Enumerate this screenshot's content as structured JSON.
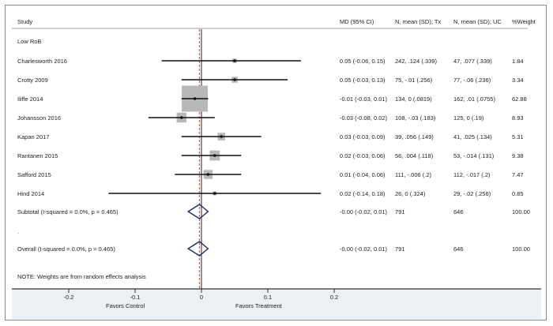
{
  "chart_data": {
    "type": "forest",
    "xlabel_left": "Favors Control",
    "xlabel_right": "Favors Treatment",
    "xlim": [
      -0.3,
      0.2
    ],
    "xticks": [
      -0.2,
      -0.1,
      0,
      0.1,
      0.2
    ],
    "xtick_labels": [
      "-0.2",
      "-0.1",
      "0",
      "0.1",
      "0.2"
    ],
    "null_line": 0,
    "overall_line": -0.003,
    "columns": [
      "Study",
      "MD (95% CI)",
      "N, mean (SD); Tx",
      "N, mean (SD); UC",
      "%Weight"
    ],
    "group_label": "Low RoB",
    "studies": [
      {
        "name": "Charlesworth 2016",
        "md": 0.05,
        "lo": -0.06,
        "hi": 0.15,
        "md_text": "0.05 (-0.06, 0.15)",
        "tx": "242, .124 (.339)",
        "uc": "47, .077 (.339)",
        "weight": 1.84,
        "weight_text": "1.84"
      },
      {
        "name": "Crotty 2009",
        "md": 0.05,
        "lo": -0.03,
        "hi": 0.13,
        "md_text": "0.05 (-0.03, 0.13)",
        "tx": "75, -.01 (.256)",
        "uc": "77, -.06 (.236)",
        "weight": 3.34,
        "weight_text": "3.34"
      },
      {
        "name": "Iliffe 2014",
        "md": -0.01,
        "lo": -0.03,
        "hi": 0.01,
        "md_text": "-0.01 (-0.03, 0.01)",
        "tx": "134, 0 (.0819)",
        "uc": "162, .01 (.0755)",
        "weight": 62.88,
        "weight_text": "62.88"
      },
      {
        "name": "Johansson 2016",
        "md": -0.03,
        "lo": -0.08,
        "hi": 0.02,
        "md_text": "-0.03 (-0.08, 0.02)",
        "tx": "108, -.03 (.183)",
        "uc": "125, 0 (.19)",
        "weight": 8.93,
        "weight_text": "8.93"
      },
      {
        "name": "Kapan 2017",
        "md": 0.03,
        "lo": -0.03,
        "hi": 0.09,
        "md_text": "0.03 (-0.03, 0.09)",
        "tx": "39, .056 (.149)",
        "uc": "41, .025 (.134)",
        "weight": 5.31,
        "weight_text": "5.31"
      },
      {
        "name": "Rantanen 2015",
        "md": 0.02,
        "lo": -0.03,
        "hi": 0.06,
        "md_text": "0.02 (-0.03, 0.06)",
        "tx": "56, .004 (.118)",
        "uc": "53, -.014 (.131)",
        "weight": 9.38,
        "weight_text": "9.38"
      },
      {
        "name": "Safford 2015",
        "md": 0.01,
        "lo": -0.04,
        "hi": 0.06,
        "md_text": "0.01 (-0.04, 0.06)",
        "tx": "111, -.006 (.2)",
        "uc": "112, -.017 (.2)",
        "weight": 7.47,
        "weight_text": "7.47"
      },
      {
        "name": "Hind 2014",
        "md": 0.02,
        "lo": -0.14,
        "hi": 0.18,
        "md_text": "0.02 (-0.14, 0.18)",
        "tx": "26, 0 (.324)",
        "uc": "29, -.02 (.256)",
        "weight": 0.85,
        "weight_text": "0.85"
      }
    ],
    "subtotal": {
      "label": "Subtotal  (I-squared = 0.0%, p = 0.465)",
      "md": -0.003,
      "lo": -0.02,
      "hi": 0.01,
      "md_text": "-0.00 (-0.02, 0.01)",
      "tx": "791",
      "uc": "646",
      "weight_text": "100.00"
    },
    "separator_label": ".",
    "overall": {
      "label": "Overall  (I-squared = 0.0%, p = 0.465)",
      "md": -0.003,
      "lo": -0.02,
      "hi": 0.01,
      "md_text": "-0.00 (-0.02, 0.01)",
      "tx": "791",
      "uc": "646",
      "weight_text": "100.00"
    },
    "note": "NOTE: Weights are from random effects analysis",
    "colors": {
      "ci_line": "#111111",
      "weight_box": "#b8b8b8",
      "diamond": "#1c2a6e",
      "null_line": "#555555",
      "overall_line": "#b06b6b",
      "axis_band": "#eaf0f3"
    }
  }
}
